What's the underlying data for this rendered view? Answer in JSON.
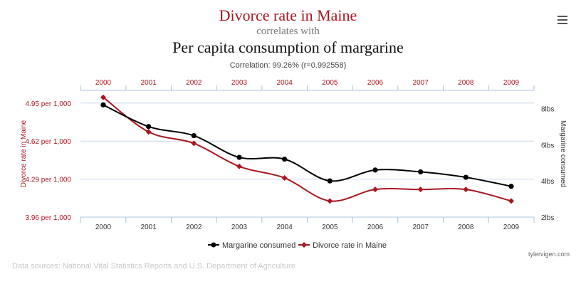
{
  "header": {
    "title_main": "Divorce rate in Maine",
    "title_sub": "correlates with",
    "title_second": "Per capita consumption of margarine",
    "correlation": "Correlation: 99.26% (r=0.992558)"
  },
  "icons": {
    "menu": "menu-icon"
  },
  "footer": {
    "sources": "Data sources: National Vital Statistics Reports and U.S. Department of Agriculture",
    "credit": "tylervigen.com"
  },
  "colors": {
    "divorce": "#a8171f",
    "margarine": "#000000",
    "grid": "#c5d5e8",
    "axis_line": "#a8c1df"
  },
  "chart_data": {
    "type": "line",
    "x": [
      2000,
      2001,
      2002,
      2003,
      2004,
      2005,
      2006,
      2007,
      2008,
      2009
    ],
    "x_tick_labels": [
      "2000",
      "2001",
      "2002",
      "2003",
      "2004",
      "2005",
      "2006",
      "2007",
      "2008",
      "2009"
    ],
    "y_left": {
      "label": "Divorce rate in Maine",
      "ticks": [
        3.96,
        4.29,
        4.62,
        4.95
      ],
      "tick_labels": [
        "3.96 per 1,000",
        "4.29 per 1,000",
        "4.62 per 1,000",
        "4.95 per 1,000"
      ],
      "range": [
        3.96,
        5.06
      ]
    },
    "y_right": {
      "label": "Margarine consumed",
      "ticks": [
        2,
        4,
        6,
        8
      ],
      "tick_labels": [
        "2lbs",
        "4lbs",
        "6lbs",
        "8lbs"
      ],
      "range": [
        2,
        9
      ]
    },
    "series": [
      {
        "name": "Margarine consumed",
        "axis": "right",
        "color": "#000000",
        "values": [
          8.2,
          7,
          6.5,
          5.3,
          5.2,
          4,
          4.6,
          4.5,
          4.2,
          3.7
        ]
      },
      {
        "name": "Divorce rate in Maine",
        "axis": "left",
        "color": "#a8171f",
        "values": [
          5,
          4.7,
          4.6,
          4.4,
          4.3,
          4.1,
          4.2,
          4.2,
          4.2,
          4.1
        ]
      }
    ],
    "legend": {
      "position": "bottom-center"
    },
    "grid": true
  }
}
